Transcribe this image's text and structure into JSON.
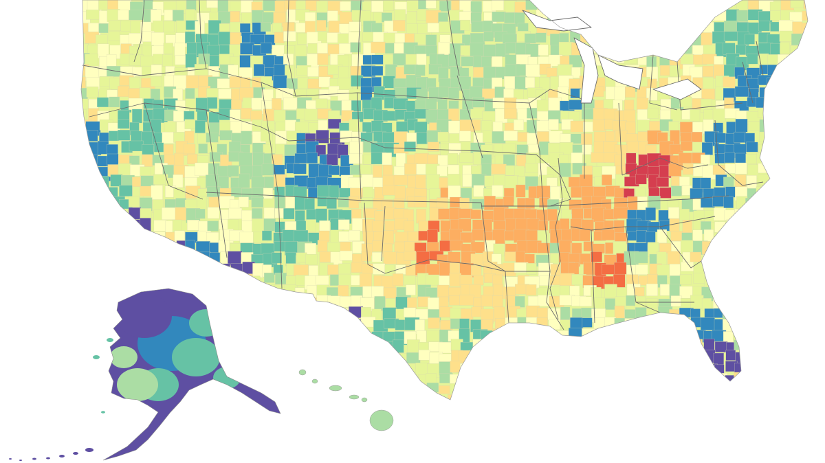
{
  "palette": {
    "purple": "#5e4fa2",
    "blue": "#3288bd",
    "teal": "#66c2a5",
    "green": "#abdda4",
    "yellow_green": "#e6f598",
    "pale_yellow": "#ffffbf",
    "light_orange": "#fee08b",
    "orange": "#fdae61",
    "red_orange": "#f46d43",
    "red": "#d53e4f",
    "state_border": "#6b6b6b",
    "background": "#ffffff"
  },
  "regions": [
    {
      "name": "alaska",
      "dominant": "purple"
    },
    {
      "name": "hawaii",
      "dominant": "green"
    },
    {
      "name": "oklahoma",
      "dominant": "orange"
    },
    {
      "name": "eastern-kentucky",
      "dominant": "red"
    },
    {
      "name": "colorado-mountains",
      "dominant": "purple"
    },
    {
      "name": "california-coast",
      "dominant": "blue"
    },
    {
      "name": "florida",
      "dominant": "blue"
    },
    {
      "name": "northeast",
      "dominant": "blue"
    }
  ]
}
